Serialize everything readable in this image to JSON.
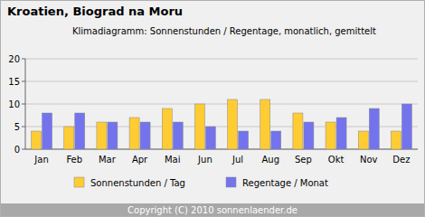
{
  "chart_data": {
    "type": "bar",
    "title": "Kroatien, Biograd na Moru",
    "subtitle": "Klimadiagramm: Sonnenstunden / Regentage, monatlich, gemittelt",
    "footer": "Copyright (C) 2010 sonnenlaender.de",
    "categories": [
      "Jan",
      "Feb",
      "Mar",
      "Apr",
      "Mai",
      "Jun",
      "Jul",
      "Aug",
      "Sep",
      "Okt",
      "Nov",
      "Dez"
    ],
    "series": [
      {
        "name": "Sonnenstunden / Tag",
        "color": "#ffcc33",
        "values": [
          4,
          5,
          6,
          7,
          9,
          10,
          11,
          11,
          8,
          6,
          4,
          4
        ]
      },
      {
        "name": "Regentage / Monat",
        "color": "#7373ee",
        "values": [
          8,
          8,
          6,
          6,
          6,
          5,
          4,
          4,
          6,
          7,
          9,
          10
        ]
      }
    ],
    "ylim": [
      0,
      20
    ],
    "yticks": [
      0,
      5,
      10,
      15,
      20
    ],
    "grid": true,
    "legend": "bottom"
  }
}
